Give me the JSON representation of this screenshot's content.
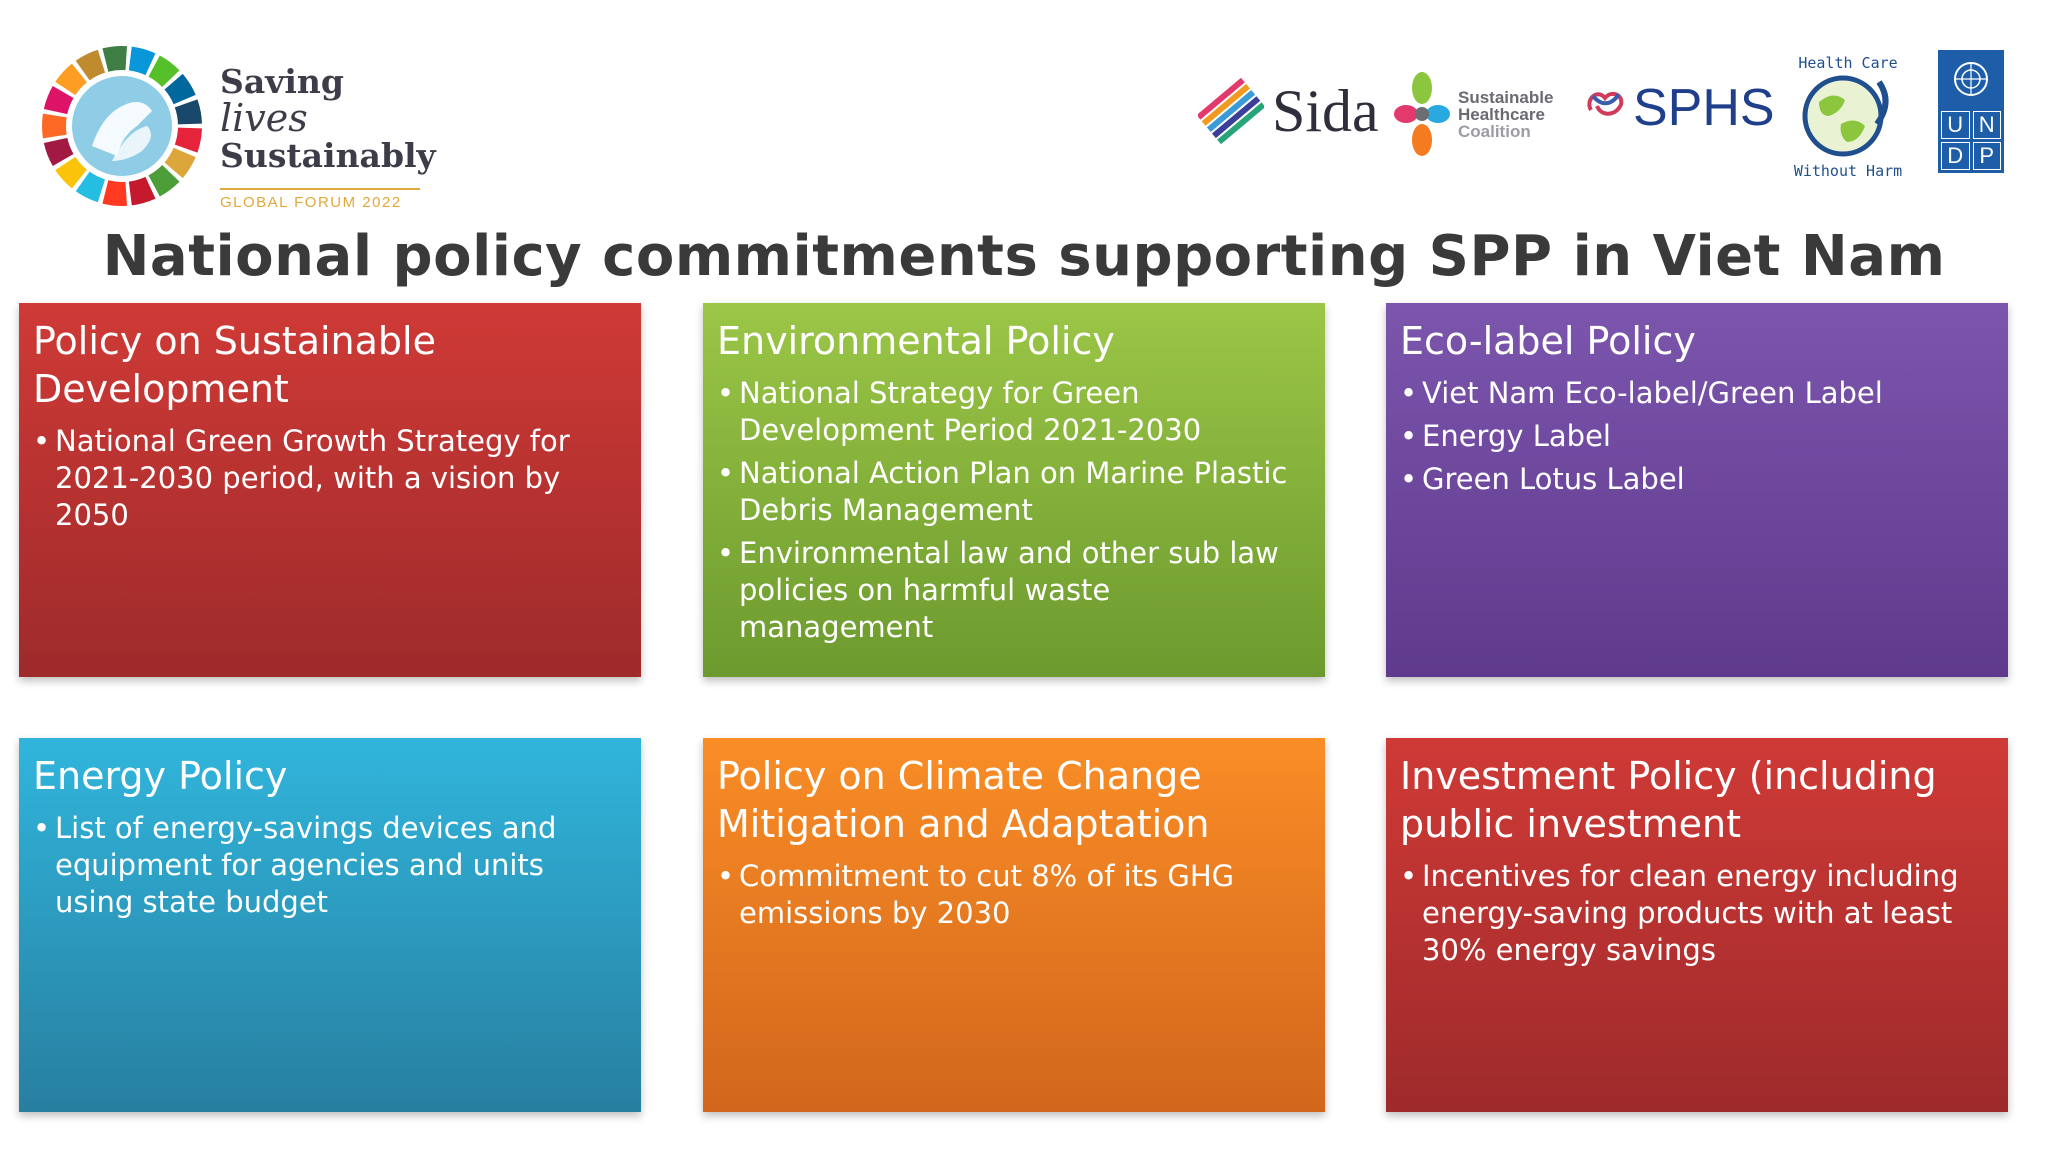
{
  "header": {
    "forum_logo": {
      "line1_a": "Saving",
      "line1_b": "lives",
      "line2": "Sustainably",
      "line3": "GLOBAL FORUM 2022"
    },
    "partners": {
      "sida": "Sida",
      "shc_line1": "Sustainable",
      "shc_line2": "Healthcare",
      "shc_line3": "Coalition",
      "sphs": "SPHS",
      "hcwh_top": "Health Care",
      "hcwh_bottom": "Without Harm",
      "undp_cells": [
        "U",
        "N",
        "D",
        "P"
      ]
    }
  },
  "title": "National policy commitments supporting SPP in Viet Nam",
  "cards": [
    {
      "title": "Policy on Sustainable Development",
      "items": [
        "National Green Growth Strategy for 2021-2030 period, with a vision by 2050"
      ]
    },
    {
      "title": "Environmental Policy",
      "items": [
        "National Strategy for Green Development Period 2021-2030",
        "National Action Plan on Marine Plastic Debris Management",
        "Environmental law and other sub law policies on harmful waste management"
      ]
    },
    {
      "title": "Eco-label Policy",
      "items": [
        "Viet Nam Eco-label/Green Label",
        "Energy Label",
        "Green Lotus Label"
      ]
    },
    {
      "title": "Energy Policy",
      "items": [
        "List of energy-savings devices and equipment for agencies and units using state budget"
      ]
    },
    {
      "title": "Policy on Climate Change Mitigation and Adaptation",
      "items": [
        "Commitment to cut 8% of its GHG emissions by 2030"
      ]
    },
    {
      "title": "Investment Policy (including public investment",
      "items": [
        "Incentives for clean energy including energy-saving products with at least 30% energy savings"
      ]
    }
  ],
  "colors": {
    "red": "#cf3a36",
    "green": "#9bc647",
    "purple": "#7c55ad",
    "blue": "#31b5dc",
    "orange": "#f98d26"
  }
}
